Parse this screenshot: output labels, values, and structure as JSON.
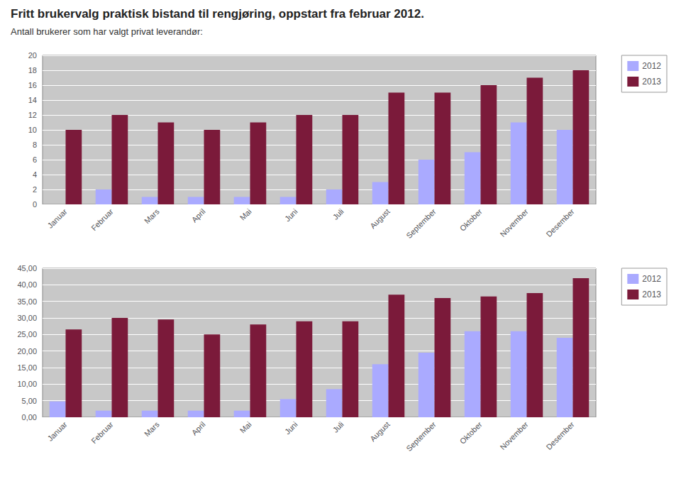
{
  "chart_data": [
    {
      "type": "bar",
      "title": "Fritt brukervalg praktisk bistand til rengjøring, oppstart fra februar 2012.",
      "subtitle": "Antall brukerer som har valgt privat leverandør:",
      "categories": [
        "Januar",
        "Februar",
        "Mars",
        "April",
        "Mai",
        "Juni",
        "Juli",
        "August",
        "September",
        "Oktober",
        "November",
        "Desember"
      ],
      "series": [
        {
          "name": "2012",
          "color": "#aaaaff",
          "values": [
            0,
            2,
            1,
            1,
            1,
            1,
            2,
            3,
            6,
            7,
            11,
            10
          ]
        },
        {
          "name": "2013",
          "color": "#7b1a3a",
          "values": [
            10,
            12,
            11,
            10,
            11,
            12,
            12,
            15,
            15,
            16,
            17,
            18
          ]
        }
      ],
      "ylim": [
        0,
        20
      ],
      "yticks": [
        0,
        2,
        4,
        6,
        8,
        10,
        12,
        14,
        16,
        18,
        20
      ],
      "grid": true,
      "legend": "right"
    },
    {
      "type": "bar",
      "categories": [
        "Januar",
        "Februar",
        "Mars",
        "April",
        "Mai",
        "Juni",
        "Juli",
        "August",
        "September",
        "Oktober",
        "November",
        "Desember"
      ],
      "series": [
        {
          "name": "2012",
          "color": "#aaaaff",
          "values": [
            4.8,
            2.0,
            2.0,
            2.0,
            2.0,
            5.5,
            8.5,
            16.0,
            19.5,
            26.0,
            26.0,
            24.0
          ]
        },
        {
          "name": "2013",
          "color": "#7b1a3a",
          "values": [
            26.5,
            30.0,
            29.5,
            25.0,
            28.0,
            29.0,
            29.0,
            37.0,
            36.0,
            36.5,
            37.5,
            42.0
          ]
        }
      ],
      "ylim": [
        0,
        45
      ],
      "yticks": [
        {
          "value": 0,
          "label": "0,00"
        },
        {
          "value": 5,
          "label": "5,00"
        },
        {
          "value": 10,
          "label": "10,00"
        },
        {
          "value": 15,
          "label": "15,00"
        },
        {
          "value": 20,
          "label": "20,00"
        },
        {
          "value": 25,
          "label": "25,00"
        },
        {
          "value": 30,
          "label": "30,00"
        },
        {
          "value": 35,
          "label": "35,00"
        },
        {
          "value": 40,
          "label": "40,00"
        },
        {
          "value": 45,
          "label": "45,00"
        }
      ],
      "grid": true,
      "legend": "right"
    }
  ]
}
